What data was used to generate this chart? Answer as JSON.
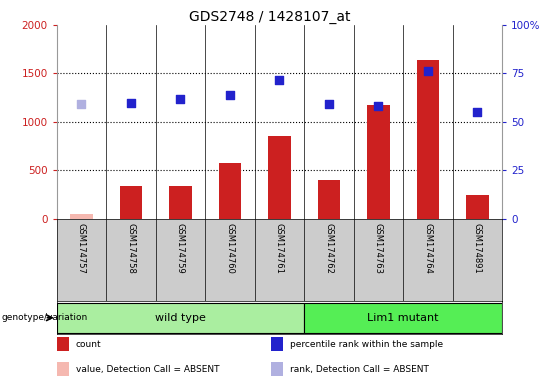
{
  "title": "GDS2748 / 1428107_at",
  "samples": [
    "GSM174757",
    "GSM174758",
    "GSM174759",
    "GSM174760",
    "GSM174761",
    "GSM174762",
    "GSM174763",
    "GSM174764",
    "GSM174891"
  ],
  "count_values": [
    50,
    340,
    340,
    580,
    850,
    400,
    1170,
    1640,
    250
  ],
  "percentile_values": [
    1180,
    1200,
    1240,
    1280,
    1430,
    1180,
    1160,
    1530,
    1100
  ],
  "absent_count_indices": [
    0
  ],
  "absent_rank_indices": [
    0
  ],
  "wild_type_indices": [
    0,
    1,
    2,
    3,
    4
  ],
  "lim1_mutant_indices": [
    5,
    6,
    7,
    8
  ],
  "ylim_left": [
    0,
    2000
  ],
  "ylim_right": [
    0,
    100
  ],
  "yticks_left": [
    0,
    500,
    1000,
    1500,
    2000
  ],
  "yticks_right": [
    0,
    25,
    50,
    75,
    100
  ],
  "hlines": [
    500,
    1000,
    1500
  ],
  "bar_color": "#cc2020",
  "bar_absent_color": "#f5b8b0",
  "scatter_color": "#2222cc",
  "scatter_absent_color": "#b0b0e0",
  "left_tick_color": "#cc2020",
  "right_tick_color": "#2222cc",
  "label_bg_color": "#cccccc",
  "wildtype_fill": "#aaeea0",
  "mutant_fill": "#55ee55",
  "genotype_label": "genotype/variation",
  "legend": [
    {
      "label": "count",
      "color": "#cc2020"
    },
    {
      "label": "percentile rank within the sample",
      "color": "#2222cc"
    },
    {
      "label": "value, Detection Call = ABSENT",
      "color": "#f5b8b0"
    },
    {
      "label": "rank, Detection Call = ABSENT",
      "color": "#b0b0e0"
    }
  ]
}
